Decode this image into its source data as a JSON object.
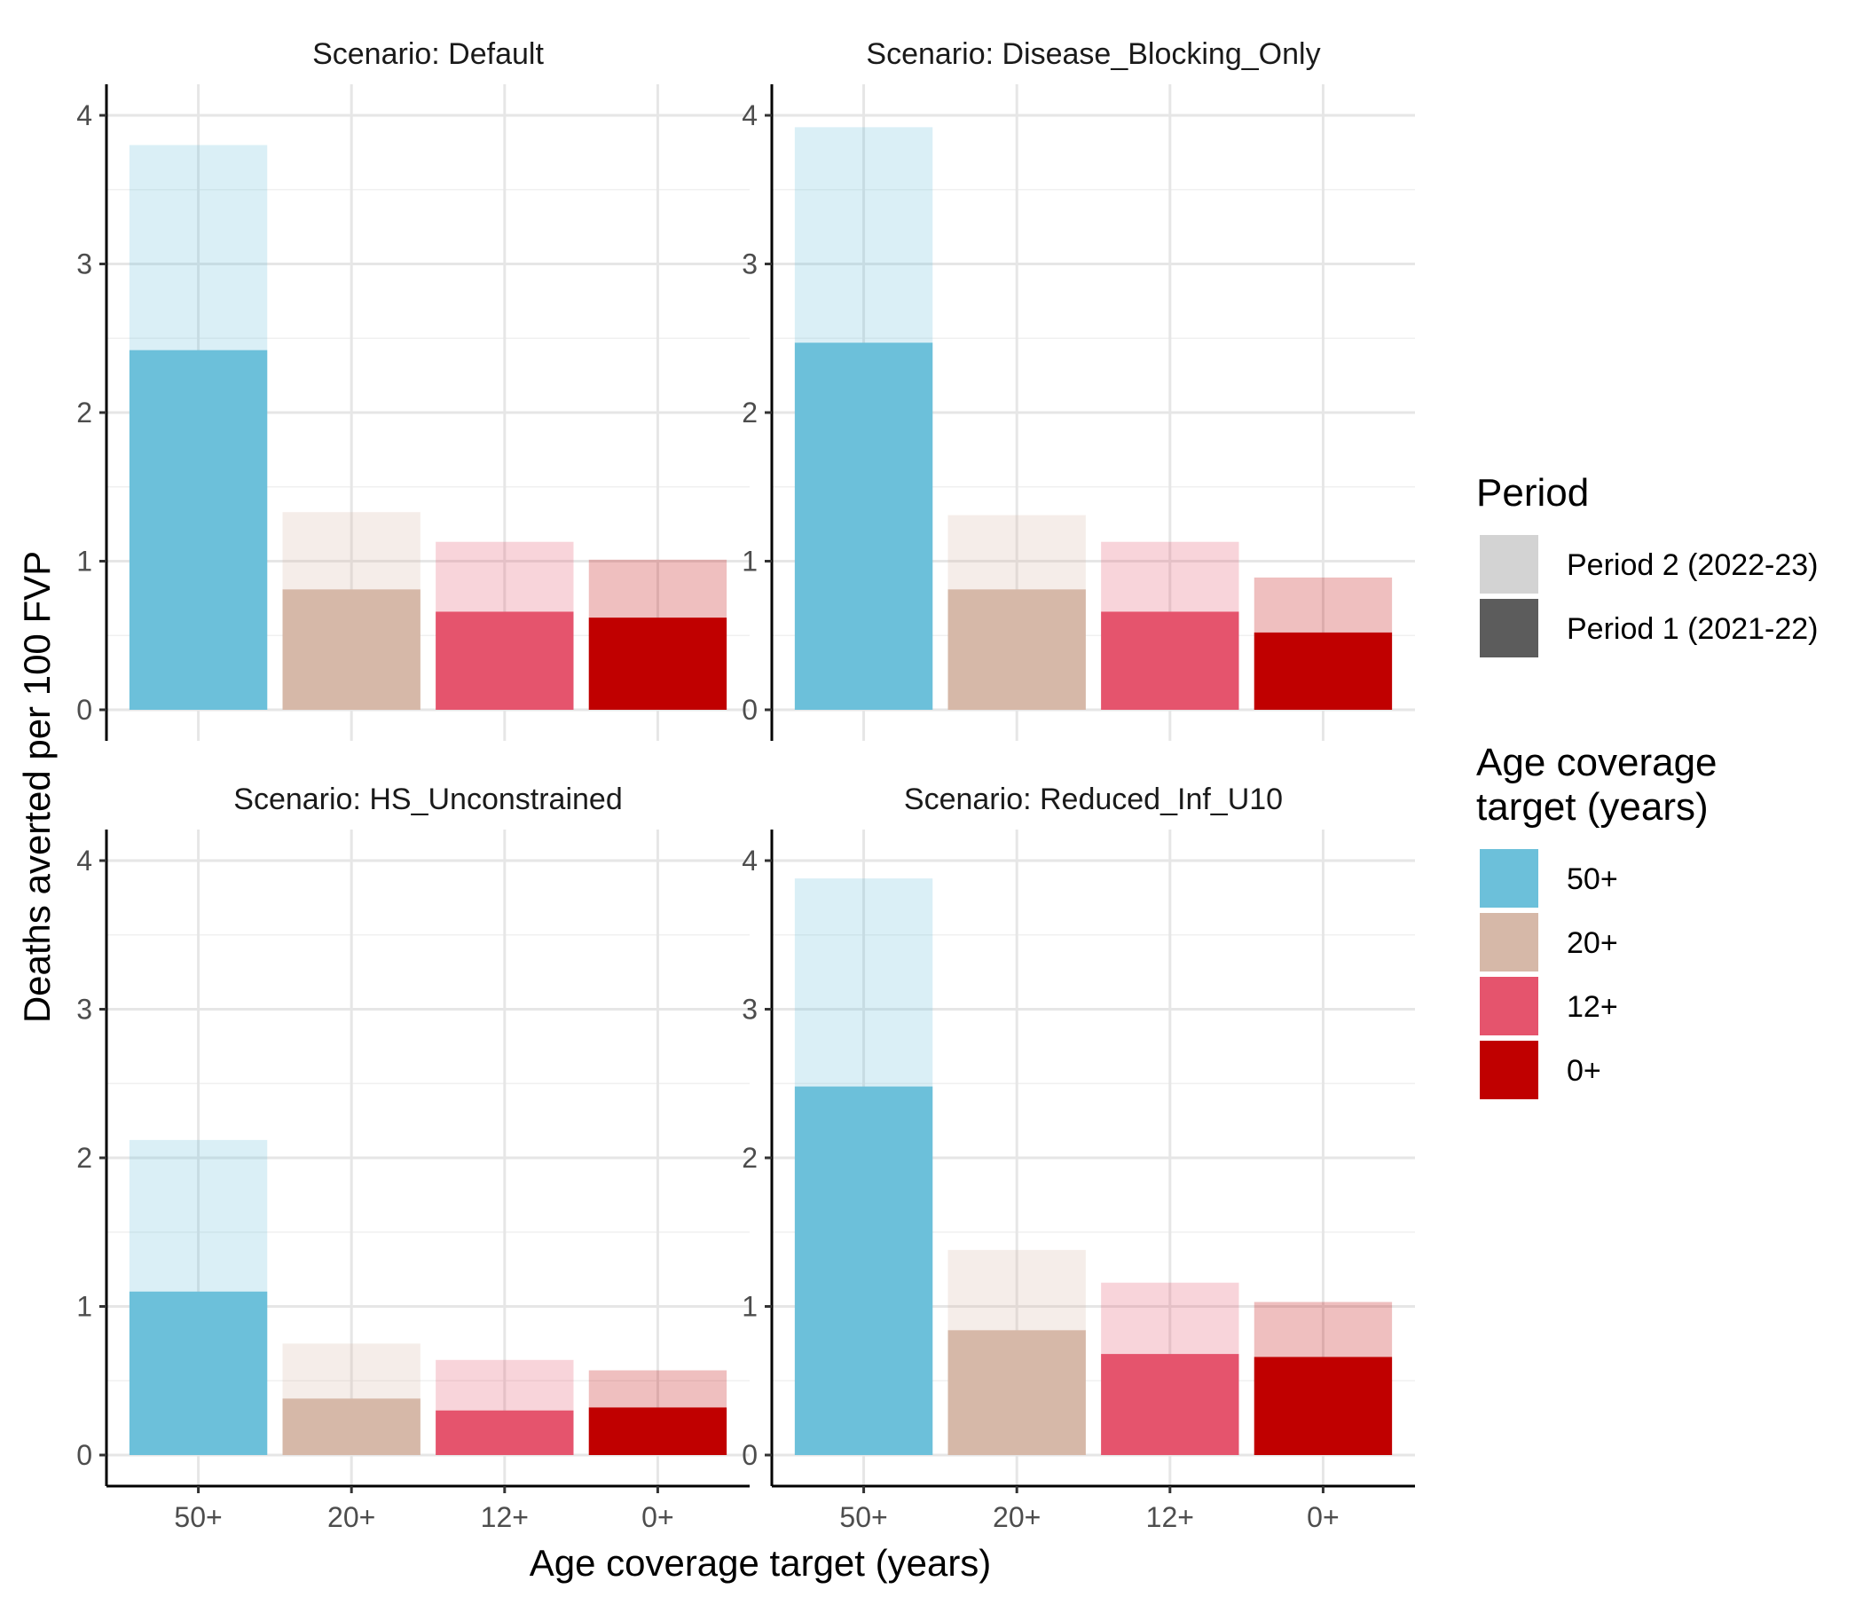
{
  "chart_data": {
    "type": "bar",
    "layout": "stacked-overlay facets 2x2",
    "xlabel": "Age coverage target (years)",
    "ylabel": "Deaths averted per 100 FVP",
    "ylim": [
      0,
      4
    ],
    "yticks": [
      "0",
      "1",
      "2",
      "3",
      "4"
    ],
    "grid": true,
    "categories": [
      "50+",
      "20+",
      "12+",
      "0+"
    ],
    "colors": {
      "50+": "#6cc0da",
      "20+": "#d6b8a8",
      "12+": "#e5546d",
      "0+": "#c00000"
    },
    "legend": {
      "placement": "right",
      "period_title": "Period",
      "period_items": [
        {
          "label": "Period 2 (2022-23)",
          "color": "#d3d3d3"
        },
        {
          "label": "Period 1 (2021-22)",
          "color": "#5c5c5c"
        }
      ],
      "age_title_line1": "Age coverage",
      "age_title_line2": "target (years)",
      "age_items": [
        {
          "label": "50+",
          "color": "#6cc0da"
        },
        {
          "label": "20+",
          "color": "#d6b8a8"
        },
        {
          "label": "12+",
          "color": "#e5546d"
        },
        {
          "label": "0+",
          "color": "#c00000"
        }
      ]
    },
    "panels": [
      {
        "title": "Scenario: Default",
        "series": [
          {
            "name": "Period 1 (2021-22)",
            "values": [
              2.42,
              0.81,
              0.66,
              0.62
            ]
          },
          {
            "name": "Period 2 (2022-23)",
            "values": [
              3.8,
              1.33,
              1.13,
              1.01
            ]
          }
        ]
      },
      {
        "title": "Scenario: Disease_Blocking_Only",
        "series": [
          {
            "name": "Period 1 (2021-22)",
            "values": [
              2.47,
              0.81,
              0.66,
              0.52
            ]
          },
          {
            "name": "Period 2 (2022-23)",
            "values": [
              3.92,
              1.31,
              1.13,
              0.89
            ]
          }
        ]
      },
      {
        "title": "Scenario: HS_Unconstrained",
        "series": [
          {
            "name": "Period 1 (2021-22)",
            "values": [
              1.1,
              0.38,
              0.3,
              0.32
            ]
          },
          {
            "name": "Period 2 (2022-23)",
            "values": [
              2.12,
              0.75,
              0.64,
              0.57
            ]
          }
        ]
      },
      {
        "title": "Scenario: Reduced_Inf_U10",
        "series": [
          {
            "name": "Period 1 (2021-22)",
            "values": [
              2.48,
              0.84,
              0.68,
              0.66
            ]
          },
          {
            "name": "Period 2 (2022-23)",
            "values": [
              3.88,
              1.38,
              1.16,
              1.03
            ]
          }
        ]
      }
    ]
  }
}
